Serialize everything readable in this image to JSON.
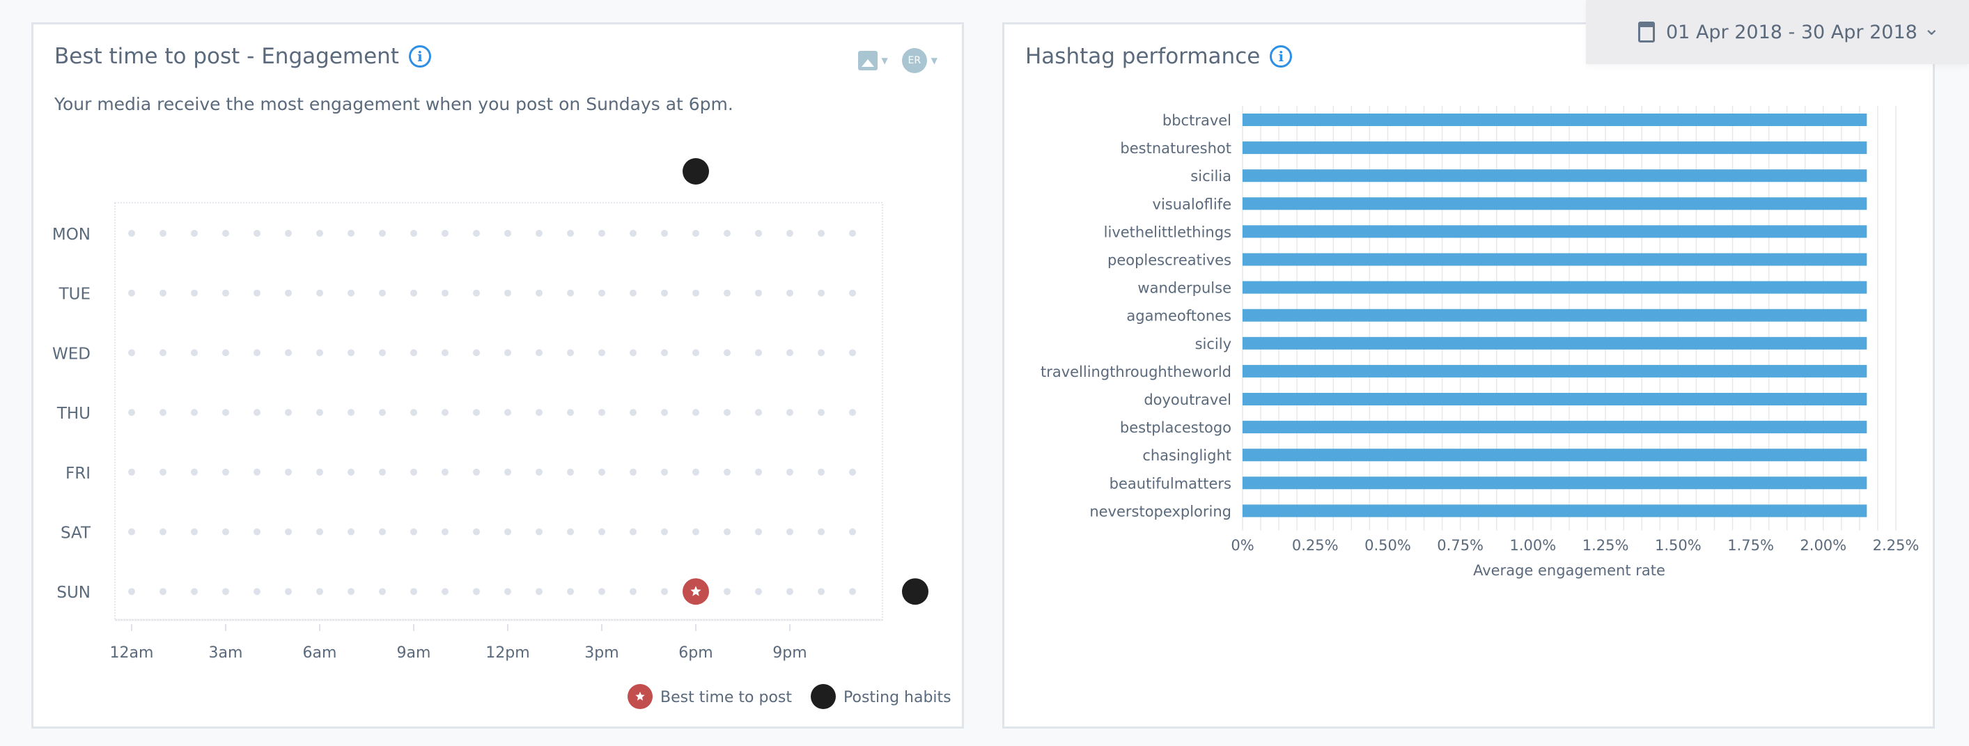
{
  "best_time_card": {
    "title": "Best time to post - Engagement",
    "info_icon": "info-circle-icon",
    "subtitle": "Your media receive the most engagement when you post on Sundays at 6pm.",
    "controls": {
      "media_icon": "image-icon",
      "metric_badge": "ER"
    }
  },
  "hashtag_card": {
    "title": "Hashtag performance",
    "info_icon": "info-circle-icon"
  },
  "date_range": {
    "label": "01 Apr 2018 - 30 Apr 2018",
    "icon": "calendar-icon"
  },
  "colors": {
    "accent": "#2d8fe6",
    "bar": "#52a7dc",
    "best": "#c24e4e",
    "habit": "#1e1e1e",
    "dot": "#dde1ea"
  },
  "chart_data": [
    {
      "type": "scatter",
      "rows": [
        "MON",
        "TUE",
        "WED",
        "THU",
        "FRI",
        "SAT",
        "SUN"
      ],
      "x_ticks": [
        "12am",
        "3am",
        "6am",
        "9am",
        "12pm",
        "3pm",
        "6pm",
        "9pm"
      ],
      "hours_per_row": 24,
      "best_time": {
        "day": "SUN",
        "hour": 18
      },
      "posting_habits_marginal": {
        "hour": 18,
        "day": "SUN"
      },
      "legend": [
        {
          "name": "Best time to post",
          "color": "#c24e4e"
        },
        {
          "name": "Posting habits",
          "color": "#1e1e1e"
        }
      ],
      "legend_position": "bottom-right"
    },
    {
      "type": "bar",
      "orientation": "horizontal",
      "categories": [
        "bbctravel",
        "bestnatureshot",
        "sicilia",
        "visualoflife",
        "livethelittlethings",
        "peoplescreatives",
        "wanderpulse",
        "agameoftones",
        "sicily",
        "travellingthroughtheworld",
        "doyoutravel",
        "bestplacestogo",
        "chasinglight",
        "beautifulmatters",
        "neverstopexploring"
      ],
      "values": [
        2.15,
        2.15,
        2.15,
        2.15,
        2.15,
        2.15,
        2.15,
        2.15,
        2.15,
        2.15,
        2.15,
        2.15,
        2.15,
        2.15,
        2.15
      ],
      "x_ticks": [
        "0%",
        "0.25%",
        "0.50%",
        "0.75%",
        "1.00%",
        "1.25%",
        "1.50%",
        "1.75%",
        "2.00%",
        "2.25%"
      ],
      "xlabel": "Average engagement rate",
      "xlim": [
        0,
        2.25
      ],
      "grid": true
    }
  ]
}
